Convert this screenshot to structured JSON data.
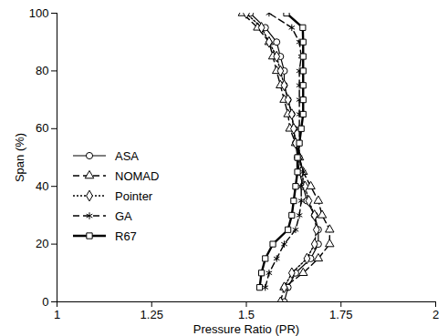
{
  "chart_data": {
    "type": "line",
    "x_label": "Pressure Ratio (PR)",
    "y_label": "Span (%)",
    "xlim": [
      1,
      2
    ],
    "xticks": [
      1,
      1.25,
      1.5,
      1.75,
      2
    ],
    "ylim": [
      0,
      100
    ],
    "yticks": [
      0,
      20,
      40,
      60,
      80,
      100
    ],
    "legend": "left",
    "y": [
      0,
      5,
      10,
      15,
      20,
      25,
      30,
      35,
      40,
      45,
      50,
      55,
      60,
      65,
      70,
      75,
      80,
      85,
      90,
      95,
      100
    ],
    "series": [
      {
        "name": "ASA",
        "color": "#000000",
        "marker": "circle",
        "line_style": "solid",
        "values": [
          1.6,
          1.61,
          1.63,
          1.67,
          1.69,
          1.69,
          1.68,
          1.66,
          1.65,
          1.64,
          1.635,
          1.63,
          1.625,
          1.62,
          1.61,
          1.6,
          1.6,
          1.59,
          1.58,
          1.55,
          1.51
        ]
      },
      {
        "name": "NOMAD",
        "color": "#000000",
        "marker": "triangle",
        "line_style": "dashed",
        "values": [
          1.59,
          1.6,
          1.65,
          1.69,
          1.72,
          1.72,
          1.7,
          1.69,
          1.67,
          1.65,
          1.64,
          1.63,
          1.615,
          1.61,
          1.6,
          1.59,
          1.58,
          1.57,
          1.56,
          1.53,
          1.49
        ]
      },
      {
        "name": "Pointer",
        "color": "#000000",
        "marker": "diamond",
        "line_style": "dotted",
        "values": [
          null,
          1.6,
          1.62,
          1.66,
          1.68,
          1.685,
          1.68,
          1.665,
          1.655,
          1.645,
          1.64,
          1.63,
          1.625,
          1.62,
          1.61,
          1.6,
          1.59,
          1.58,
          1.56,
          1.54,
          1.5
        ]
      },
      {
        "name": "GA",
        "color": "#000000",
        "marker": "asterisk",
        "line_style": "dashed",
        "values": [
          null,
          1.55,
          1.56,
          1.58,
          1.6,
          1.63,
          1.64,
          1.645,
          1.645,
          1.65,
          1.64,
          1.64,
          1.64,
          1.64,
          1.64,
          1.64,
          1.64,
          1.645,
          1.64,
          1.62,
          1.56
        ]
      },
      {
        "name": "R67",
        "color": "#000000",
        "marker": "square",
        "line_style": "thick",
        "values": [
          null,
          1.535,
          1.54,
          1.55,
          1.57,
          1.61,
          1.62,
          1.625,
          1.63,
          1.635,
          1.635,
          1.64,
          1.645,
          1.65,
          1.65,
          1.65,
          1.65,
          1.65,
          1.65,
          1.649,
          1.606
        ]
      }
    ]
  }
}
